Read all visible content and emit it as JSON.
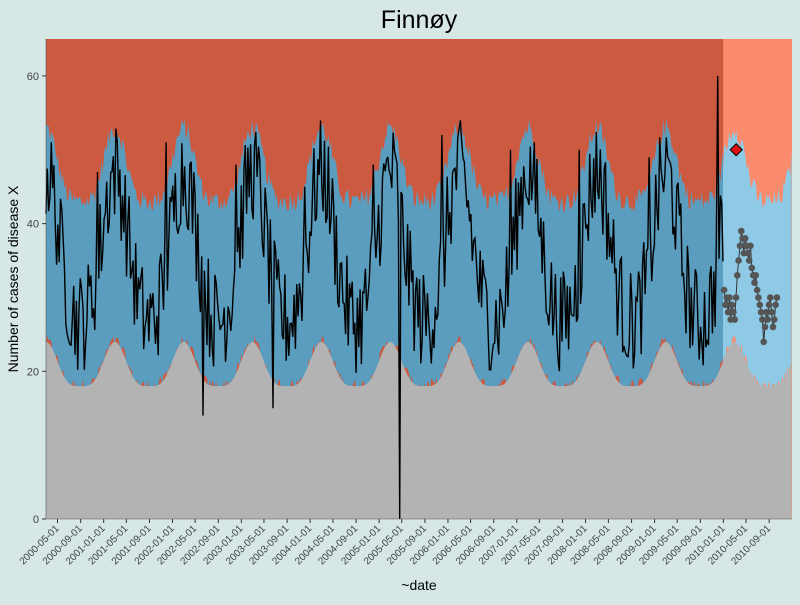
{
  "chart_data": {
    "type": "area",
    "title": "Finnøy",
    "xlabel": "~date",
    "ylabel": "Number of cases of disease X",
    "ylim": [
      0,
      65
    ],
    "yticks": [
      0,
      20,
      40,
      60
    ],
    "xticks": [
      "2000-05-01",
      "2000-09-01",
      "2001-01-01",
      "2001-05-01",
      "2001-09-01",
      "2002-01-01",
      "2002-05-01",
      "2002-09-01",
      "2003-01-01",
      "2003-05-01",
      "2003-09-01",
      "2004-01-01",
      "2004-05-01",
      "2004-09-01",
      "2005-01-01",
      "2005-05-01",
      "2005-09-01",
      "2006-01-01",
      "2006-05-01",
      "2006-09-01",
      "2007-01-01",
      "2007-05-01",
      "2007-09-01",
      "2008-01-01",
      "2008-05-01",
      "2008-09-01",
      "2009-01-01",
      "2009-05-01",
      "2009-09-01",
      "2010-01-01",
      "2010-05-01",
      "2010-09-01"
    ],
    "xrange": [
      "2000-03-01",
      "2010-12-31"
    ],
    "forecast_start": "2010-01-01",
    "grid": false,
    "legend": "none",
    "colors": {
      "background": "#d6e7e6",
      "high_zone": "#cc5a40",
      "high_zone_forecast": "#fb8b6d",
      "expected_band": "#5a9dbf",
      "expected_band_forecast": "#8ecae6",
      "low_zone": "#b3b3b3",
      "observed_line": "#000000",
      "forecast_points": "#555555",
      "alert_point": "#dd1111"
    },
    "annual_pattern": {
      "upper_threshold_trough": 43,
      "upper_threshold_peak": 53,
      "lower_threshold_trough": 18,
      "lower_threshold_peak": 24,
      "peak_month": 2
    },
    "observed_peaks": [
      {
        "date": "2000-12-01",
        "value": 47
      },
      {
        "date": "2001-12-01",
        "value": 51
      },
      {
        "date": "2002-12-01",
        "value": 48
      },
      {
        "date": "2003-12-01",
        "value": 45
      },
      {
        "date": "2004-12-01",
        "value": 48
      },
      {
        "date": "2005-12-01",
        "value": 52
      },
      {
        "date": "2006-12-01",
        "value": 50
      },
      {
        "date": "2007-12-01",
        "value": 50
      },
      {
        "date": "2008-12-01",
        "value": 49
      },
      {
        "date": "2009-12-01",
        "value": 60
      }
    ],
    "observed_outliers": [
      {
        "date": "2002-06-15",
        "value": 14
      },
      {
        "date": "2003-06-15",
        "value": 15
      },
      {
        "date": "2005-04-20",
        "value": 0
      }
    ],
    "forecast_points": [
      {
        "date": "2010-01-05",
        "value": 31
      },
      {
        "date": "2010-01-12",
        "value": 29
      },
      {
        "date": "2010-01-19",
        "value": 30
      },
      {
        "date": "2010-01-26",
        "value": 28
      },
      {
        "date": "2010-02-02",
        "value": 30
      },
      {
        "date": "2010-02-09",
        "value": 27
      },
      {
        "date": "2010-02-16",
        "value": 29
      },
      {
        "date": "2010-02-23",
        "value": 28
      },
      {
        "date": "2010-03-02",
        "value": 27
      },
      {
        "date": "2010-03-09",
        "value": 30
      },
      {
        "date": "2010-03-16",
        "value": 33
      },
      {
        "date": "2010-03-23",
        "value": 35
      },
      {
        "date": "2010-03-30",
        "value": 37
      },
      {
        "date": "2010-04-06",
        "value": 39
      },
      {
        "date": "2010-04-13",
        "value": 38
      },
      {
        "date": "2010-04-20",
        "value": 36
      },
      {
        "date": "2010-04-27",
        "value": 38
      },
      {
        "date": "2010-05-04",
        "value": 37
      },
      {
        "date": "2010-05-11",
        "value": 36
      },
      {
        "date": "2010-05-18",
        "value": 35
      },
      {
        "date": "2010-05-25",
        "value": 37
      },
      {
        "date": "2010-06-01",
        "value": 34
      },
      {
        "date": "2010-06-08",
        "value": 33
      },
      {
        "date": "2010-06-15",
        "value": 32
      },
      {
        "date": "2010-06-22",
        "value": 33
      },
      {
        "date": "2010-06-29",
        "value": 31
      },
      {
        "date": "2010-07-06",
        "value": 30
      },
      {
        "date": "2010-07-13",
        "value": 29
      },
      {
        "date": "2010-07-20",
        "value": 28
      },
      {
        "date": "2010-07-27",
        "value": 27
      },
      {
        "date": "2010-08-03",
        "value": 24
      },
      {
        "date": "2010-08-10",
        "value": 26
      },
      {
        "date": "2010-08-17",
        "value": 28
      },
      {
        "date": "2010-08-24",
        "value": 27
      },
      {
        "date": "2010-08-31",
        "value": 29
      },
      {
        "date": "2010-09-07",
        "value": 30
      },
      {
        "date": "2010-09-14",
        "value": 28
      },
      {
        "date": "2010-09-21",
        "value": 26
      },
      {
        "date": "2010-09-28",
        "value": 27
      },
      {
        "date": "2010-10-05",
        "value": 29
      },
      {
        "date": "2010-10-12",
        "value": 30
      }
    ],
    "alert_point": {
      "date": "2010-03-10",
      "value": 50
    }
  }
}
